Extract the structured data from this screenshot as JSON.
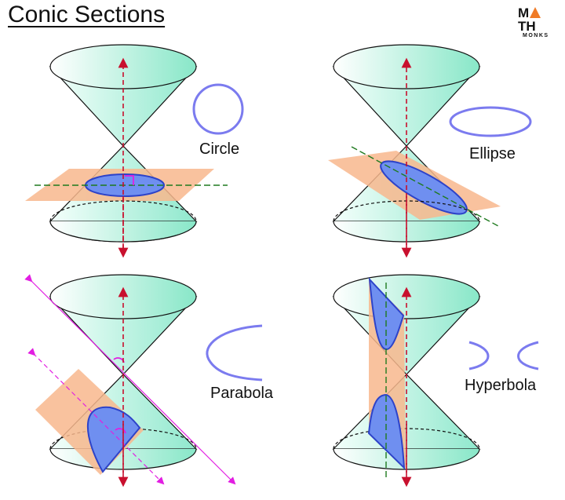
{
  "title": "Conic Sections",
  "logo": {
    "main_left": "M",
    "main_right": "TH",
    "sub": "MONKS"
  },
  "colors": {
    "cone_light": "#e6fbf5",
    "cone_dark": "#97ead0",
    "plane": "#f8b78d",
    "section": "#6f8ff0",
    "section_stroke": "#2d43c9",
    "axis": "#c8102e",
    "guide": "#1e7a1e",
    "magenta": "#e21ee2",
    "shape_outline": "#7b7bef"
  },
  "conics": [
    {
      "name": "circle",
      "label": "Circle"
    },
    {
      "name": "ellipse",
      "label": "Ellipse"
    },
    {
      "name": "parabola",
      "label": "Parabola"
    },
    {
      "name": "hyperbola",
      "label": "Hyperbola"
    }
  ]
}
